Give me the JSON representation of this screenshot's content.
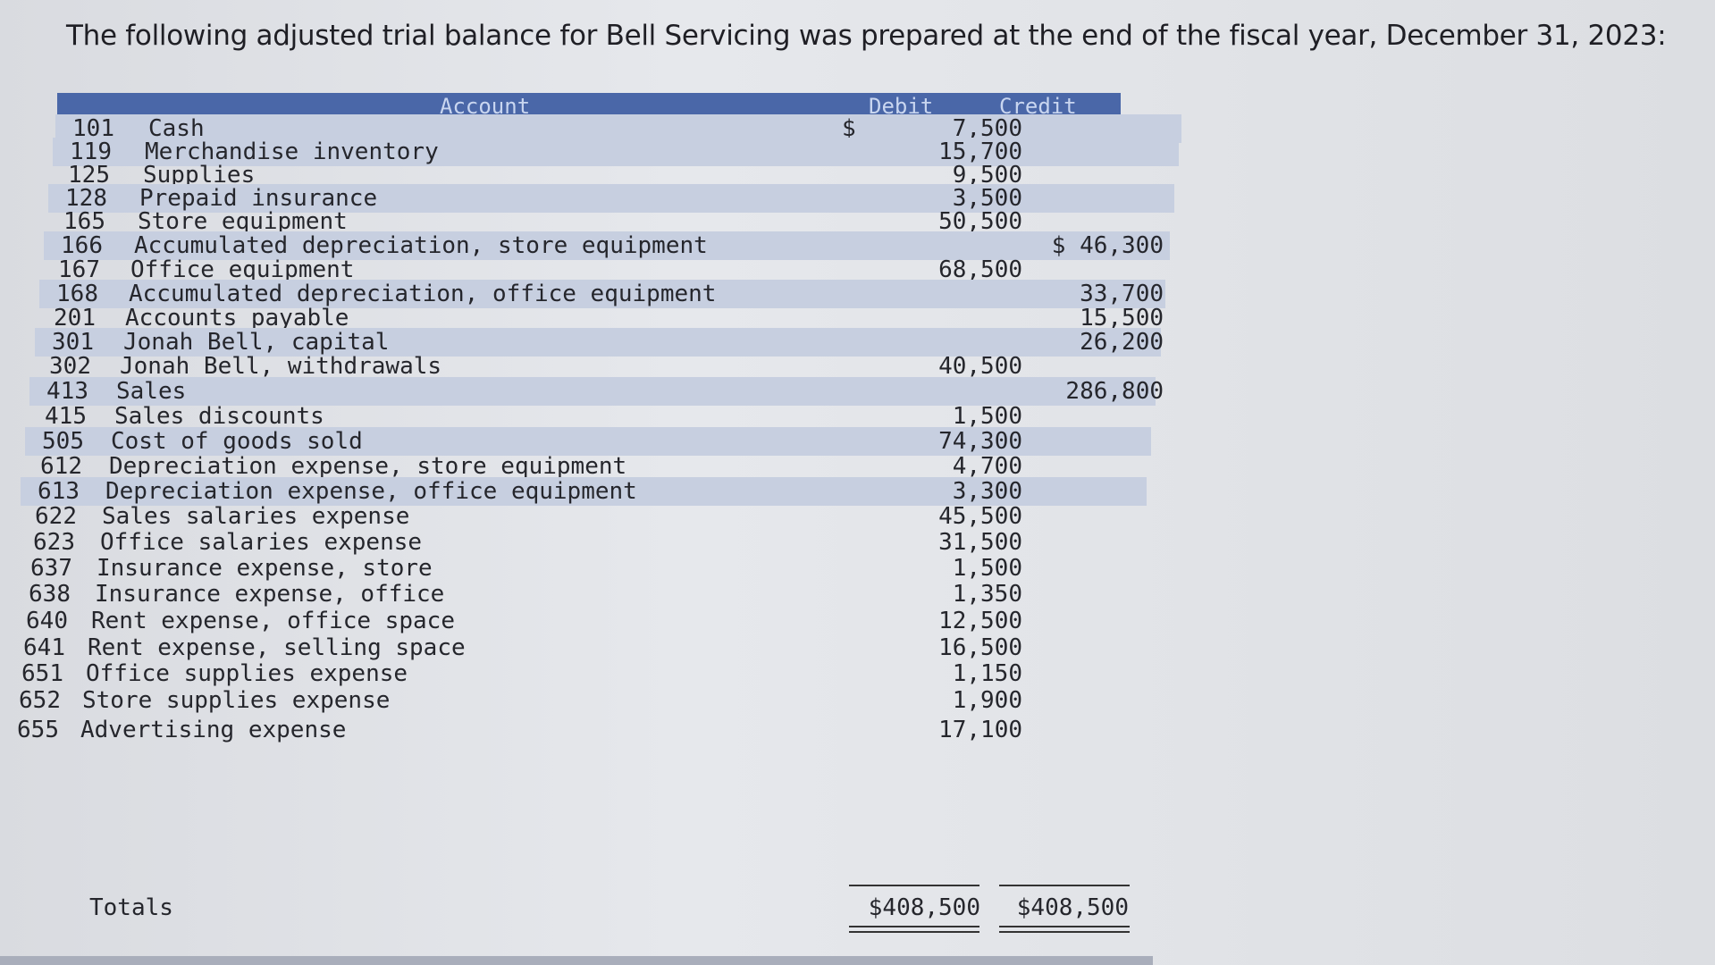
{
  "intro": "The following adjusted trial balance for Bell Servicing was prepared at the end of the fiscal year, December 31, 2023:",
  "table": {
    "headers": {
      "account": "Account",
      "debit": "Debit",
      "credit": "Credit"
    },
    "rows": [
      {
        "no": "101",
        "account": "Cash",
        "debit": "7,500",
        "credit": ""
      },
      {
        "no": "119",
        "account": "Merchandise inventory",
        "debit": "15,700",
        "credit": ""
      },
      {
        "no": "125",
        "account": "Supplies",
        "debit": "9,500",
        "credit": ""
      },
      {
        "no": "128",
        "account": "Prepaid insurance",
        "debit": "3,500",
        "credit": ""
      },
      {
        "no": "165",
        "account": "Store equipment",
        "debit": "50,500",
        "credit": ""
      },
      {
        "no": "166",
        "account": "Accumulated depreciation, store equipment",
        "debit": "",
        "credit": "$ 46,300"
      },
      {
        "no": "167",
        "account": "Office equipment",
        "debit": "68,500",
        "credit": ""
      },
      {
        "no": "168",
        "account": "Accumulated depreciation, office equipment",
        "debit": "",
        "credit": "33,700"
      },
      {
        "no": "201",
        "account": "Accounts payable",
        "debit": "",
        "credit": "15,500"
      },
      {
        "no": "301",
        "account": "Jonah Bell, capital",
        "debit": "",
        "credit": "26,200"
      },
      {
        "no": "302",
        "account": "Jonah Bell, withdrawals",
        "debit": "40,500",
        "credit": ""
      },
      {
        "no": "413",
        "account": "Sales",
        "debit": "",
        "credit": "286,800"
      },
      {
        "no": "415",
        "account": "Sales discounts",
        "debit": "1,500",
        "credit": ""
      },
      {
        "no": "505",
        "account": "Cost of goods sold",
        "debit": "74,300",
        "credit": ""
      },
      {
        "no": "612",
        "account": "Depreciation expense, store equipment",
        "debit": "4,700",
        "credit": ""
      },
      {
        "no": "613",
        "account": "Depreciation expense, office equipment",
        "debit": "3,300",
        "credit": ""
      },
      {
        "no": "622",
        "account": "Sales salaries expense",
        "debit": "45,500",
        "credit": ""
      },
      {
        "no": "623",
        "account": "Office salaries expense",
        "debit": "31,500",
        "credit": ""
      },
      {
        "no": "637",
        "account": "Insurance expense, store",
        "debit": "1,500",
        "credit": ""
      },
      {
        "no": "638",
        "account": "Insurance expense, office",
        "debit": "1,350",
        "credit": ""
      },
      {
        "no": "640",
        "account": "Rent expense, office space",
        "debit": "12,500",
        "credit": ""
      },
      {
        "no": "641",
        "account": "Rent expense, selling space",
        "debit": "16,500",
        "credit": ""
      },
      {
        "no": "651",
        "account": "Office supplies expense",
        "debit": "1,150",
        "credit": ""
      },
      {
        "no": "652",
        "account": "Store supplies expense",
        "debit": "1,900",
        "credit": ""
      },
      {
        "no": "655",
        "account": "Advertising expense",
        "debit": "17,100",
        "credit": ""
      }
    ],
    "first_debit_dollar": "$",
    "totals": {
      "label": "Totals",
      "debit": "$408,500",
      "credit": "$408,500"
    }
  }
}
